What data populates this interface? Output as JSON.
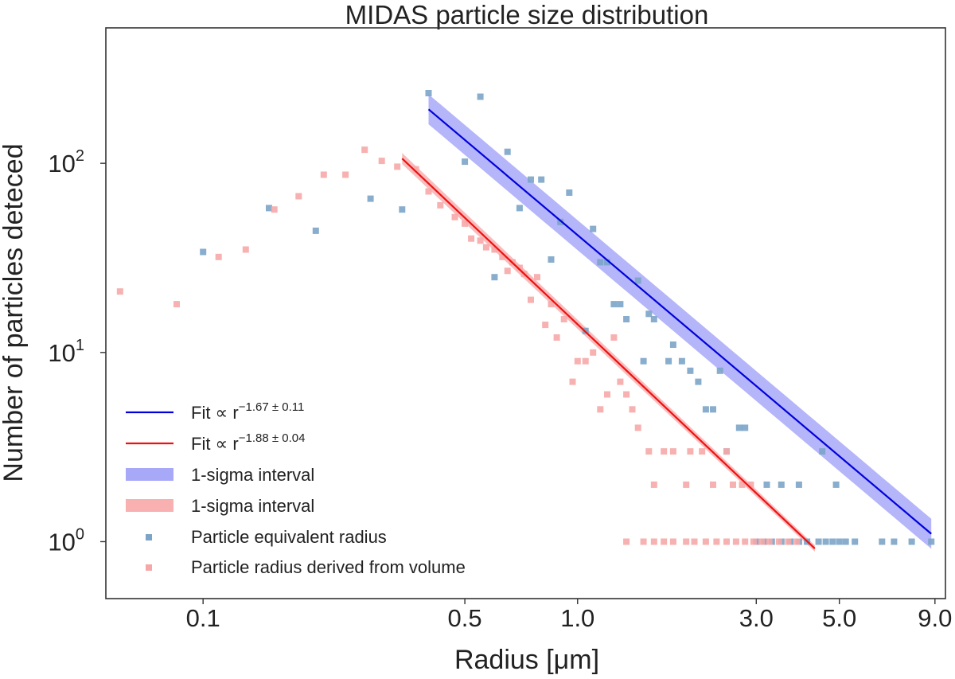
{
  "chart_data": {
    "type": "scatter",
    "title": "MIDAS particle size distribution",
    "xlabel": "Radius [μm]",
    "ylabel": "Number of particles deteced",
    "xscale": "log",
    "yscale": "log",
    "xlim": [
      0.055,
      9.6
    ],
    "ylim": [
      0.5,
      520
    ],
    "grid": false,
    "legend_position": "lower-left",
    "x_ticks": [
      {
        "value": 0.1,
        "label": "0.1"
      },
      {
        "value": 0.5,
        "label": "0.5"
      },
      {
        "value": 1.0,
        "label": "1.0"
      },
      {
        "value": 3.0,
        "label": "3.0"
      },
      {
        "value": 5.0,
        "label": "5.0"
      },
      {
        "value": 9.0,
        "label": "9.0"
      }
    ],
    "y_ticks": [
      {
        "value": 1,
        "base": "10",
        "exp": "0"
      },
      {
        "value": 10,
        "base": "10",
        "exp": "1"
      },
      {
        "value": 100,
        "base": "10",
        "exp": "2"
      }
    ],
    "fits": [
      {
        "name": "Fit ∝ r^(-1.67±0.11)",
        "label_prefix": "Fit ∝ r",
        "label_exponent": "−1.67 ± 0.11",
        "color": "#0000dd",
        "x_start": 0.4,
        "x_end": 8.8,
        "y_start": 193,
        "y_end": 1.1,
        "sigma_label": "1-sigma interval",
        "sigma_color": "#a8a8f8",
        "sigma_factor_start": 1.2,
        "sigma_factor_end": 1.2
      },
      {
        "name": "Fit ∝ r^(-1.88±0.04)",
        "label_prefix": "Fit ∝ r",
        "label_exponent": "−1.88 ± 0.04",
        "color": "#ee1111",
        "x_start": 0.34,
        "x_end": 4.3,
        "y_start": 106,
        "y_end": 0.92,
        "sigma_label": "1-sigma interval",
        "sigma_color": "#f8b0b0",
        "sigma_factor_start": 1.07,
        "sigma_factor_end": 1.04
      }
    ],
    "series": [
      {
        "name": "Particle equivalent radius",
        "color": "#7ba4c8",
        "points": [
          [
            0.1,
            34
          ],
          [
            0.15,
            58
          ],
          [
            0.2,
            44
          ],
          [
            0.28,
            65
          ],
          [
            0.34,
            57
          ],
          [
            0.4,
            235
          ],
          [
            0.5,
            102
          ],
          [
            0.55,
            225
          ],
          [
            0.6,
            25
          ],
          [
            0.65,
            115
          ],
          [
            0.7,
            58
          ],
          [
            0.75,
            82
          ],
          [
            0.8,
            82
          ],
          [
            0.85,
            31
          ],
          [
            0.9,
            49
          ],
          [
            0.95,
            70
          ],
          [
            1.05,
            13
          ],
          [
            1.1,
            45
          ],
          [
            1.15,
            30
          ],
          [
            1.2,
            30
          ],
          [
            1.25,
            18
          ],
          [
            1.3,
            18
          ],
          [
            1.35,
            15
          ],
          [
            1.45,
            24
          ],
          [
            1.5,
            9
          ],
          [
            1.55,
            16
          ],
          [
            1.6,
            15
          ],
          [
            1.75,
            9
          ],
          [
            1.8,
            11
          ],
          [
            1.9,
            9
          ],
          [
            2.0,
            8
          ],
          [
            2.1,
            7
          ],
          [
            2.2,
            5
          ],
          [
            2.3,
            5
          ],
          [
            2.4,
            8
          ],
          [
            2.5,
            3
          ],
          [
            2.7,
            4
          ],
          [
            2.8,
            4
          ],
          [
            3.2,
            2
          ],
          [
            3.5,
            2
          ],
          [
            3.9,
            2
          ],
          [
            4.5,
            3
          ],
          [
            4.9,
            2
          ],
          [
            3.0,
            1
          ],
          [
            3.15,
            1
          ],
          [
            3.3,
            1
          ],
          [
            3.5,
            1
          ],
          [
            3.7,
            1
          ],
          [
            3.9,
            1
          ],
          [
            4.1,
            1
          ],
          [
            4.4,
            1
          ],
          [
            4.6,
            1
          ],
          [
            4.8,
            1
          ],
          [
            5.0,
            1
          ],
          [
            5.2,
            1
          ],
          [
            5.5,
            1
          ],
          [
            6.5,
            1
          ],
          [
            7.0,
            1
          ],
          [
            7.8,
            1
          ],
          [
            8.8,
            1
          ]
        ]
      },
      {
        "name": "Particle radius derived from volume",
        "color": "#f6a8a8",
        "points": [
          [
            0.06,
            21
          ],
          [
            0.085,
            18
          ],
          [
            0.11,
            32
          ],
          [
            0.13,
            35
          ],
          [
            0.155,
            57
          ],
          [
            0.18,
            67
          ],
          [
            0.21,
            87
          ],
          [
            0.24,
            87
          ],
          [
            0.27,
            118
          ],
          [
            0.3,
            103
          ],
          [
            0.33,
            96
          ],
          [
            0.37,
            93
          ],
          [
            0.4,
            71
          ],
          [
            0.43,
            60
          ],
          [
            0.47,
            52
          ],
          [
            0.5,
            48
          ],
          [
            0.52,
            40
          ],
          [
            0.55,
            39
          ],
          [
            0.57,
            36
          ],
          [
            0.6,
            35
          ],
          [
            0.63,
            32
          ],
          [
            0.65,
            27
          ],
          [
            0.67,
            30
          ],
          [
            0.7,
            28
          ],
          [
            0.72,
            26
          ],
          [
            0.75,
            19
          ],
          [
            0.78,
            25
          ],
          [
            0.82,
            14
          ],
          [
            0.85,
            18
          ],
          [
            0.88,
            12
          ],
          [
            0.92,
            15
          ],
          [
            0.97,
            7
          ],
          [
            1.0,
            9
          ],
          [
            1.05,
            9
          ],
          [
            1.1,
            10
          ],
          [
            1.15,
            5
          ],
          [
            1.2,
            6
          ],
          [
            1.25,
            12
          ],
          [
            1.3,
            7
          ],
          [
            1.35,
            6
          ],
          [
            1.4,
            5
          ],
          [
            1.45,
            4
          ],
          [
            1.55,
            3
          ],
          [
            1.6,
            2
          ],
          [
            1.7,
            3
          ],
          [
            1.8,
            3
          ],
          [
            1.95,
            2
          ],
          [
            2.0,
            3
          ],
          [
            2.15,
            3
          ],
          [
            2.3,
            2
          ],
          [
            2.5,
            3
          ],
          [
            2.6,
            2
          ],
          [
            2.75,
            2
          ],
          [
            2.9,
            2
          ],
          [
            1.35,
            1
          ],
          [
            1.5,
            1
          ],
          [
            1.6,
            1
          ],
          [
            1.7,
            1
          ],
          [
            1.8,
            1
          ],
          [
            1.95,
            1
          ],
          [
            2.05,
            1
          ],
          [
            2.2,
            1
          ],
          [
            2.35,
            1
          ],
          [
            2.5,
            1
          ],
          [
            2.65,
            1
          ],
          [
            2.8,
            1
          ],
          [
            2.95,
            1
          ],
          [
            3.1,
            1
          ],
          [
            3.25,
            1
          ],
          [
            3.45,
            1
          ],
          [
            3.65,
            1
          ],
          [
            3.85,
            1
          ]
        ]
      }
    ]
  }
}
